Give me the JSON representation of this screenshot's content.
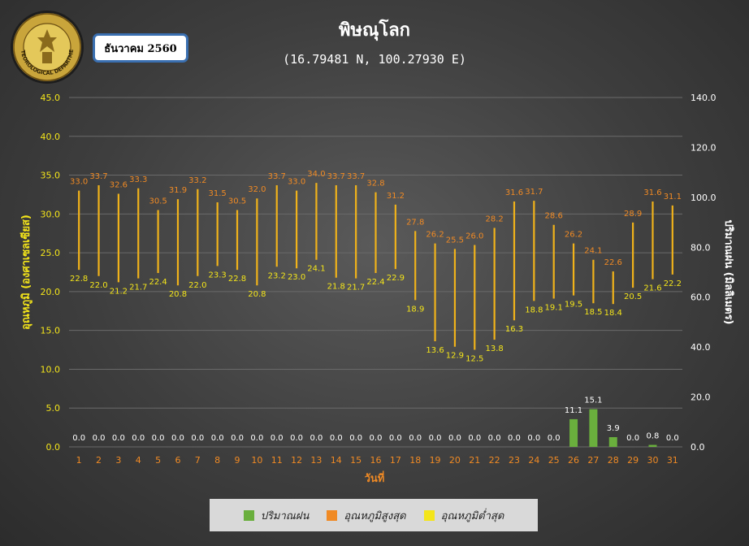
{
  "header": {
    "month_label": "ธันวาคม 2560",
    "logo_text": "METEOROLOGICAL DEPARTMENT"
  },
  "chart_data": {
    "type": "bar",
    "title": "พิษณุโลก",
    "subtitle": "(16.79481 N, 100.27930 E)",
    "xlabel": "วันที่",
    "ylabel_left": "อุณหภูมิ (องศาเซลเซียส)",
    "ylabel_right": "ปริมาณฝน (มิลลิเมตร)",
    "ylim_left": [
      0,
      45
    ],
    "ylim_right": [
      0,
      140
    ],
    "yticks_left": [
      "0.0",
      "5.0",
      "10.0",
      "15.0",
      "20.0",
      "25.0",
      "30.0",
      "35.0",
      "40.0",
      "45.0"
    ],
    "yticks_right": [
      "0.0",
      "20.0",
      "40.0",
      "60.0",
      "80.0",
      "100.0",
      "120.0",
      "140.0"
    ],
    "grid": true,
    "legend_position": "bottom",
    "categories": [
      "1",
      "2",
      "3",
      "4",
      "5",
      "6",
      "7",
      "8",
      "9",
      "10",
      "11",
      "12",
      "13",
      "14",
      "15",
      "16",
      "17",
      "18",
      "19",
      "20",
      "21",
      "22",
      "23",
      "24",
      "25",
      "26",
      "27",
      "28",
      "29",
      "30",
      "31"
    ],
    "series": [
      {
        "name": "ปริมาณฝน",
        "kind": "bar",
        "axis": "right",
        "color": "#6aaf3d",
        "values": [
          0.0,
          0.0,
          0.0,
          0.0,
          0.0,
          0.0,
          0.0,
          0.0,
          0.0,
          0.0,
          0.0,
          0.0,
          0.0,
          0.0,
          0.0,
          0.0,
          0.0,
          0.0,
          0.0,
          0.0,
          0.0,
          0.0,
          0.0,
          0.0,
          0.0,
          11.1,
          15.1,
          3.9,
          0.0,
          0.8,
          0.0
        ]
      },
      {
        "name": "อุณหภูมิสูงสุด",
        "kind": "high",
        "axis": "left",
        "color": "#f08a24",
        "values": [
          33.0,
          33.7,
          32.6,
          33.3,
          30.5,
          31.9,
          33.2,
          31.5,
          30.5,
          32.0,
          33.7,
          33.0,
          34.0,
          33.7,
          33.7,
          32.8,
          31.2,
          27.8,
          26.2,
          25.5,
          26.0,
          28.2,
          31.6,
          31.7,
          28.6,
          26.2,
          24.1,
          22.6,
          28.9,
          31.6,
          31.1
        ]
      },
      {
        "name": "อุณหภูมิต่ำสุด",
        "kind": "low",
        "axis": "left",
        "color": "#f4e51a",
        "values": [
          22.8,
          22.0,
          21.2,
          21.7,
          22.4,
          20.8,
          22.0,
          23.3,
          22.8,
          20.8,
          23.2,
          23.0,
          24.1,
          21.8,
          21.7,
          22.4,
          22.9,
          18.9,
          13.6,
          12.9,
          12.5,
          13.8,
          16.3,
          18.8,
          19.1,
          19.5,
          18.5,
          18.4,
          20.5,
          21.6,
          22.2
        ]
      }
    ]
  }
}
